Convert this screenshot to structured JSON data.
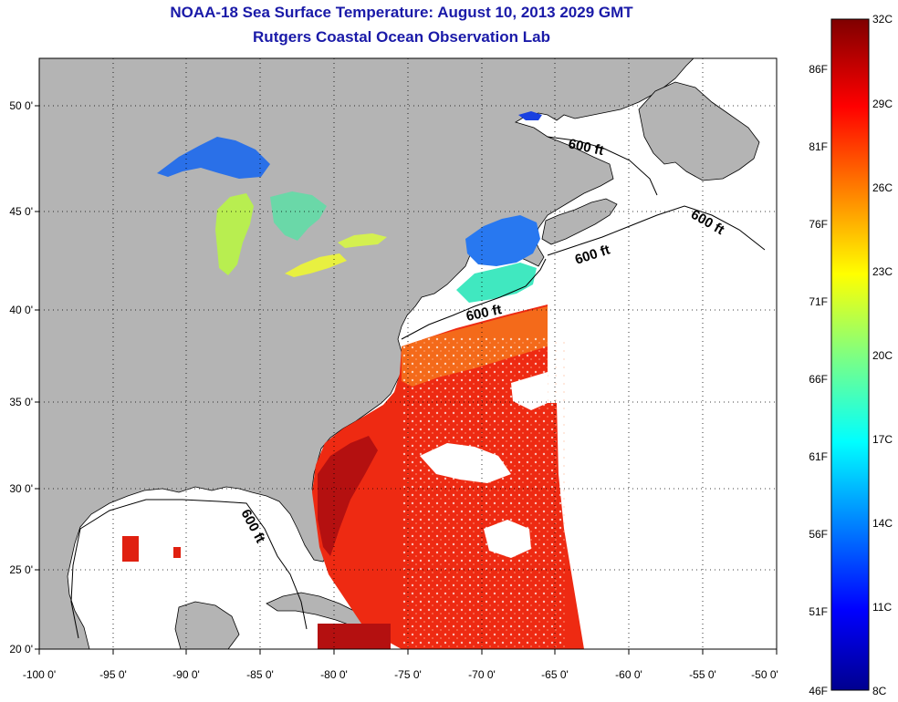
{
  "title_line1": "NOAA-18 Sea Surface Temperature:  August 10, 2013 2029 GMT",
  "title_line2": "Rutgers Coastal Ocean Observation Lab",
  "map": {
    "lon_ticks": [
      "-100 0'",
      "-95 0'",
      "-90 0'",
      "-85 0'",
      "-80 0'",
      "-75 0'",
      "-70 0'",
      "-65 0'",
      "-60 0'",
      "-55 0'",
      "-50 0'"
    ],
    "lat_ticks": [
      "50 0'",
      "45 0'",
      "40 0'",
      "35 0'",
      "30 0'",
      "25 0'",
      "20 0'"
    ],
    "contour_labels": [
      "600 ft",
      "600 ft",
      "600 ft",
      "600 ft",
      "600 ft"
    ],
    "land_color": "#b4b4b4",
    "no_data_color": "#ffffff"
  },
  "colorbar": {
    "celsius_labels": [
      "32C",
      "29C",
      "26C",
      "23C",
      "20C",
      "17C",
      "14C",
      "11C",
      "8C"
    ],
    "fahrenheit_labels": [
      "86F",
      "81F",
      "76F",
      "71F",
      "66F",
      "61F",
      "56F",
      "51F",
      "46F"
    ],
    "colors": [
      "#7f0000",
      "#ff0000",
      "#ff8000",
      "#ffff00",
      "#80ff80",
      "#00ffff",
      "#0080ff",
      "#0000ff",
      "#00008f"
    ]
  }
}
